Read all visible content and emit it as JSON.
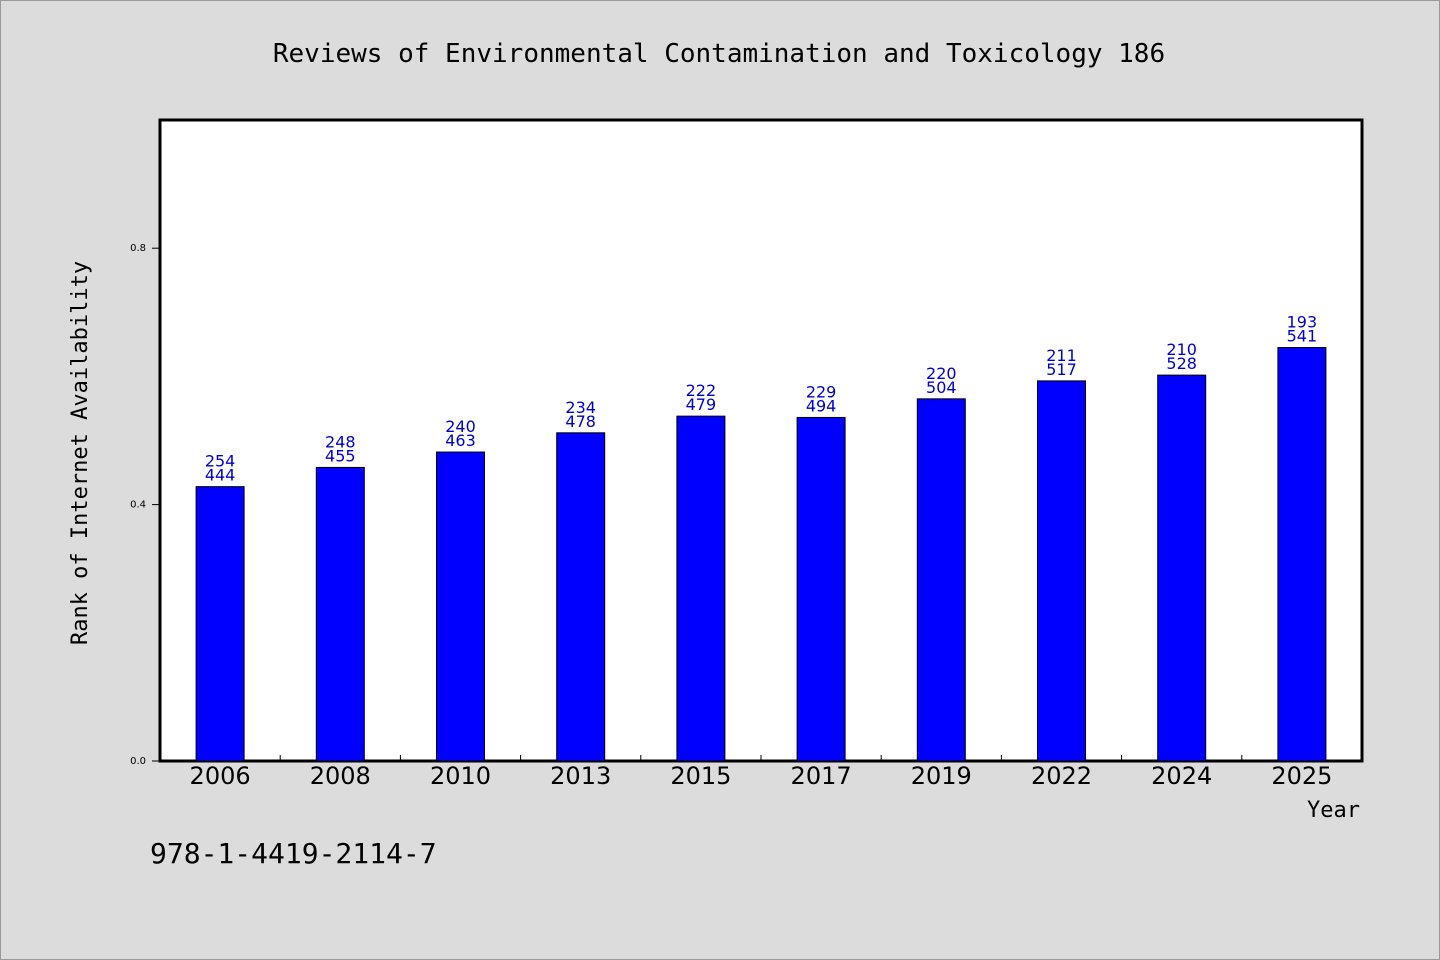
{
  "chart_data": {
    "type": "bar",
    "title": "Reviews of Environmental Contamination and Toxicology 186",
    "xlabel": "Year",
    "ylabel": "Rank of Internet Availability",
    "isbn": "978-1-4419-2114-7",
    "ylim": [
      0,
      1.0
    ],
    "yticks": [
      "0.0",
      "0.4",
      "0.8"
    ],
    "grid": false,
    "categories": [
      "2006",
      "2008",
      "2010",
      "2013",
      "2015",
      "2017",
      "2019",
      "2022",
      "2024",
      "2025"
    ],
    "values": [
      0.428,
      0.458,
      0.482,
      0.512,
      0.538,
      0.536,
      0.565,
      0.593,
      0.602,
      0.645
    ],
    "labels_top": [
      "254",
      "248",
      "240",
      "234",
      "222",
      "229",
      "220",
      "211",
      "210",
      "193"
    ],
    "labels_bottom": [
      "444",
      "455",
      "463",
      "478",
      "479",
      "494",
      "504",
      "517",
      "528",
      "541"
    ],
    "colors": {
      "bar": "#0000ff",
      "label": "#0000cc",
      "background": "#dcdcdc",
      "plot": "#ffffff",
      "axis": "#000000"
    }
  }
}
